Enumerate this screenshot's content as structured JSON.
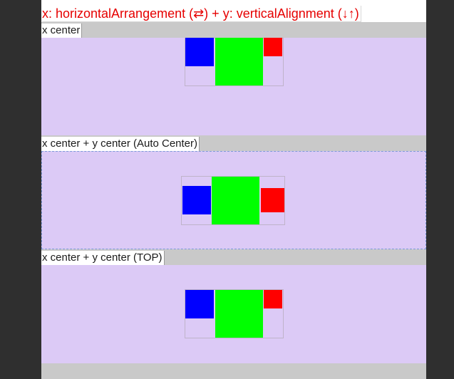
{
  "header": {
    "title": "x: horizontalArrangement (⇄) + y: verticalAlignment (↓↑)"
  },
  "sections": [
    {
      "label": "x center"
    },
    {
      "label": "x center + y center (Auto Center)"
    },
    {
      "label": "x center + y center (TOP)"
    }
  ],
  "colors": {
    "panel": "#dccaf6",
    "blue": "#0000ff",
    "green": "#00ff00",
    "red": "#ff0000",
    "title": "#e60000"
  }
}
